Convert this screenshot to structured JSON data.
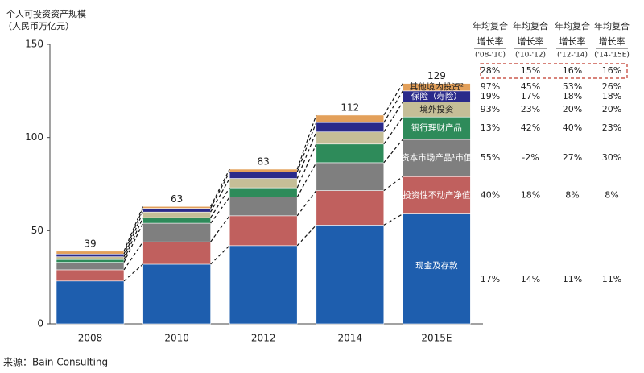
{
  "chart_data": {
    "type": "stacked_bar",
    "ylabel": [
      "个人可投资资产规模",
      "（人民币万亿元）"
    ],
    "categories": [
      "2008",
      "2010",
      "2012",
      "2014",
      "2015E"
    ],
    "totals": [
      39,
      63,
      83,
      112,
      129
    ],
    "ylim": [
      0,
      150
    ],
    "yticks": [
      0,
      50,
      100,
      150
    ],
    "series": [
      {
        "name": "现金及存款",
        "color": "#1e5eae",
        "values": [
          23,
          32,
          42,
          53,
          59
        ]
      },
      {
        "name": "投资性不动产净值",
        "color": "#c0605e",
        "values": [
          6,
          12,
          16,
          18.5,
          20
        ]
      },
      {
        "name": "资本市场产品¹市值",
        "color": "#7f7f7f",
        "values": [
          4,
          10,
          10,
          15,
          20
        ]
      },
      {
        "name": "银行理财产品",
        "color": "#2e8b5a",
        "values": [
          1.5,
          3,
          5,
          10,
          12
        ]
      },
      {
        "name": "境外投资",
        "color": "#c5be97",
        "values": [
          1.5,
          3,
          5,
          6.5,
          8
        ]
      },
      {
        "name": "保险（寿险）",
        "color": "#2a2a8a",
        "values": [
          1.5,
          2,
          3.5,
          5,
          6
        ]
      },
      {
        "name": "其他境内投资²",
        "color": "#e3a05a",
        "values": [
          1.5,
          1,
          1.5,
          4,
          4
        ]
      }
    ]
  },
  "table": {
    "headers": [
      [
        "年均复合",
        "增长率",
        "('08-'10)"
      ],
      [
        "年均复合",
        "增长率",
        "('10-'12)"
      ],
      [
        "年均复合",
        "增长率",
        "('12-'14)"
      ],
      [
        "年均复合",
        "增长率",
        "('14-'15E)"
      ]
    ],
    "total": [
      "28%",
      "15%",
      "16%",
      "16%"
    ],
    "rows": [
      [
        "17%",
        "14%",
        "11%",
        "11%"
      ],
      [
        "40%",
        "18%",
        "8%",
        "8%"
      ],
      [
        "55%",
        "-2%",
        "27%",
        "30%"
      ],
      [
        "13%",
        "42%",
        "40%",
        "23%"
      ],
      [
        "93%",
        "23%",
        "20%",
        "20%"
      ],
      [
        "19%",
        "17%",
        "18%",
        "18%"
      ],
      [
        "97%",
        "45%",
        "53%",
        "26%"
      ]
    ]
  },
  "source": "来源：Bain Consulting"
}
